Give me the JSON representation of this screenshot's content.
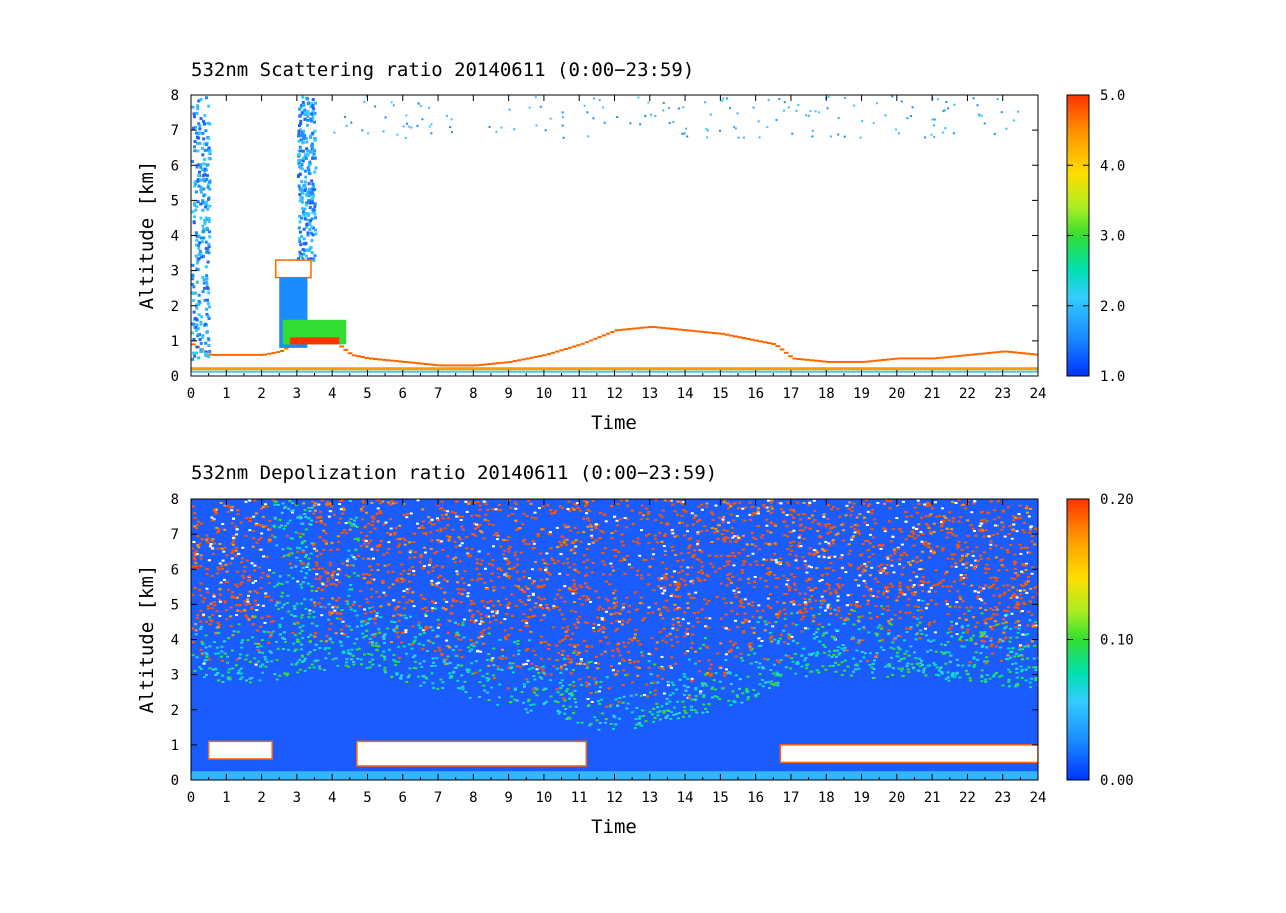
{
  "chart_data": [
    {
      "type": "heatmap",
      "title": "532nm Scattering ratio  20140611 (0:00−23:59)",
      "xlabel": "Time",
      "ylabel": "Altitude [km]",
      "xlim": [
        0,
        24
      ],
      "ylim": [
        0,
        8
      ],
      "x_ticks": [
        "0",
        "1",
        "2",
        "3",
        "4",
        "5",
        "6",
        "7",
        "8",
        "9",
        "10",
        "11",
        "12",
        "13",
        "14",
        "15",
        "16",
        "17",
        "18",
        "19",
        "20",
        "21",
        "22",
        "23",
        "24"
      ],
      "y_ticks": [
        "0",
        "1",
        "2",
        "3",
        "4",
        "5",
        "6",
        "7",
        "8"
      ],
      "colorbar": {
        "min": 1.0,
        "max": 5.0,
        "ticks": [
          "1.0",
          "2.0",
          "3.0",
          "4.0",
          "5.0"
        ]
      },
      "features": [
        {
          "name": "aerosol layer top (km)",
          "x": [
            0,
            0.5,
            1,
            2,
            2.5,
            3,
            4,
            4.5,
            5,
            6,
            7,
            8,
            9,
            10,
            11,
            12,
            13,
            14,
            15,
            16,
            16.5,
            17,
            18,
            19,
            20,
            21,
            22,
            23,
            24
          ],
          "y": [
            0.9,
            0.6,
            0.6,
            0.6,
            0.7,
            1.0,
            1.0,
            0.6,
            0.5,
            0.4,
            0.3,
            0.3,
            0.4,
            0.6,
            0.9,
            1.3,
            1.4,
            1.3,
            1.2,
            1.0,
            0.9,
            0.5,
            0.4,
            0.4,
            0.5,
            0.5,
            0.6,
            0.7,
            0.6
          ]
        },
        {
          "name": "cloud (km)",
          "x": [
            2.4,
            3.4
          ],
          "y": [
            2.8,
            3.3
          ]
        },
        {
          "name": "cirrus/precipitation column (km)",
          "x": [
            0,
            0.5
          ],
          "y": [
            0.5,
            8.0
          ]
        },
        {
          "name": "cirrus/precipitation column (km)",
          "x": [
            3.0,
            3.5
          ],
          "y": [
            3.3,
            8.0
          ]
        }
      ]
    },
    {
      "type": "heatmap",
      "title": "532nm Depolization ratio  20140611 (0:00−23:59)",
      "xlabel": "Time",
      "ylabel": "Altitude [km]",
      "xlim": [
        0,
        24
      ],
      "ylim": [
        0,
        8
      ],
      "x_ticks": [
        "0",
        "1",
        "2",
        "3",
        "4",
        "5",
        "6",
        "7",
        "8",
        "9",
        "10",
        "11",
        "12",
        "13",
        "14",
        "15",
        "16",
        "17",
        "18",
        "19",
        "20",
        "21",
        "22",
        "23",
        "24"
      ],
      "y_ticks": [
        "0",
        "1",
        "2",
        "3",
        "4",
        "5",
        "6",
        "7",
        "8"
      ],
      "colorbar": {
        "min": 0.0,
        "max": 0.2,
        "ticks": [
          "0.00",
          "0.10",
          "0.20"
        ]
      },
      "features": [
        {
          "name": "high depolarization region lower bound (km)",
          "x": [
            0.5,
            2,
            4.7,
            6,
            8,
            10,
            12,
            14,
            16,
            16.7,
            18,
            19,
            20,
            22,
            24
          ],
          "y": [
            4.0,
            4.0,
            4.5,
            4.0,
            3.5,
            3.0,
            2.5,
            3.0,
            3.5,
            4.0,
            4.3,
            4.0,
            4.2,
            4.0,
            3.8
          ]
        },
        {
          "name": "blank low-level segments (km)",
          "x": [
            0.5,
            2.3,
            4.7,
            11.2,
            16.7,
            24
          ],
          "y": [
            0.6,
            1.1,
            0.4,
            1.1,
            0.5,
            1.0
          ]
        }
      ]
    }
  ]
}
